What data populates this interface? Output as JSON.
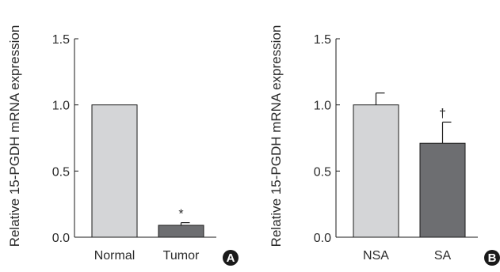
{
  "chart_data": [
    {
      "type": "bar",
      "panel": "A",
      "ylabel": "Relative 15-PGDH mRNA expression",
      "ylim": [
        0,
        1.5
      ],
      "yticks": [
        "0.0",
        "0.5",
        "1.0",
        "1.5"
      ],
      "categories": [
        "Normal",
        "Tumor"
      ],
      "values": [
        1.0,
        0.09
      ],
      "error": [
        0,
        0.02
      ],
      "colors": [
        "#d4d5d7",
        "#6d6e71"
      ],
      "annotations": [
        "",
        "*"
      ],
      "grid": false
    },
    {
      "type": "bar",
      "panel": "B",
      "ylabel": "Relative 15-PGDH mRNA expression",
      "ylim": [
        0,
        1.5
      ],
      "yticks": [
        "0.0",
        "0.5",
        "1.0",
        "1.5"
      ],
      "categories": [
        "NSA",
        "SA"
      ],
      "values": [
        1.0,
        0.71
      ],
      "error": [
        0.09,
        0.16
      ],
      "colors": [
        "#d4d5d7",
        "#6d6e71"
      ],
      "annotations": [
        "",
        "†"
      ],
      "grid": false
    }
  ]
}
